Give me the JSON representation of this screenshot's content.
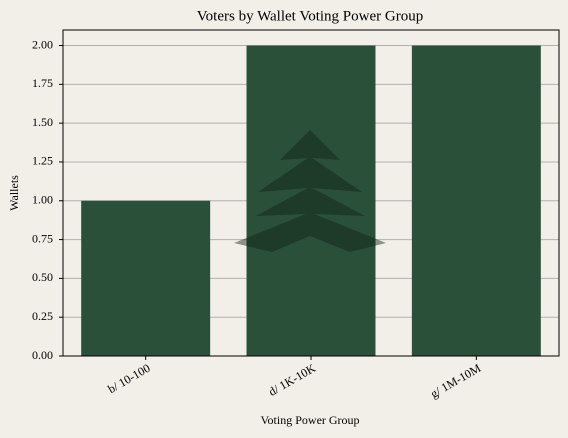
{
  "chart_data": {
    "type": "bar",
    "title": "Voters by Wallet Voting Power Group",
    "x_label": "Voting Power Group",
    "y_label": "Wallets",
    "categories": [
      "b/ 10-100",
      "d/ 1K-10K",
      "g/ 1M-10M"
    ],
    "values": [
      1,
      2,
      2
    ],
    "color": "#2a503a",
    "ylim": [
      0,
      2.1
    ],
    "yticks": [
      {
        "value": 0,
        "label": "0.00"
      },
      {
        "value": 0.25,
        "label": "0.25"
      },
      {
        "value": 0.5,
        "label": "0.50"
      },
      {
        "value": 0.75,
        "label": "0.75"
      },
      {
        "value": 1,
        "label": "1.00"
      },
      {
        "value": 1.25,
        "label": "1.25"
      },
      {
        "value": 1.5,
        "label": "1.50"
      },
      {
        "value": 1.75,
        "label": "1.75"
      },
      {
        "value": 2,
        "label": "2.00"
      }
    ],
    "grid": true
  }
}
